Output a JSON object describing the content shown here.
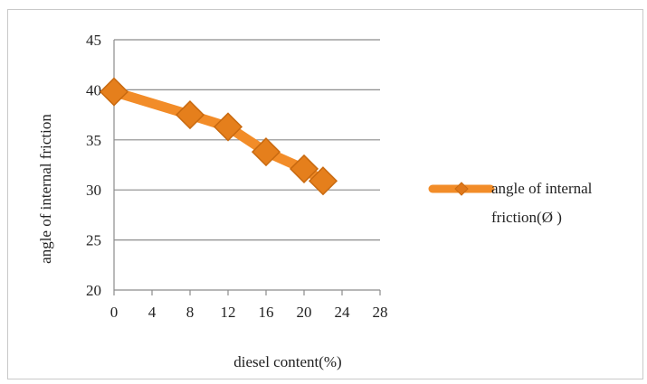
{
  "chart_data": {
    "type": "line",
    "title": "",
    "xlabel": "diesel  content(%)",
    "ylabel": "angle of internal friction",
    "xlim": [
      0,
      28
    ],
    "ylim": [
      20,
      45
    ],
    "xticks": [
      "0",
      "4",
      "8",
      "12",
      "16",
      "20",
      "24",
      "28"
    ],
    "yticks": [
      "20",
      "25",
      "30",
      "35",
      "40",
      "45"
    ],
    "grid": true,
    "legend_position": "right",
    "series": [
      {
        "name": "angle of internal friction(Ø )",
        "name_lines": [
          "angle of internal",
          "friction(Ø )"
        ],
        "color": "#f28c28",
        "marker": "diamond",
        "x": [
          0,
          8,
          12,
          16,
          20,
          22
        ],
        "y": [
          39.8,
          37.5,
          36.3,
          33.8,
          32.1,
          30.9
        ]
      }
    ]
  }
}
